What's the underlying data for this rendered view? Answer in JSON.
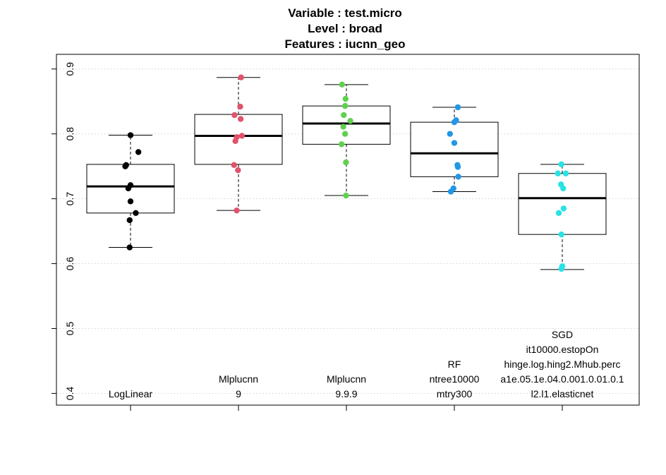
{
  "chart_data": {
    "type": "boxplot",
    "title": [
      "Variable :   test.micro",
      "Level :   broad",
      "Features :   iucnn_geo"
    ],
    "xlabel": "",
    "ylabel": "",
    "ylim": [
      0.38,
      0.93
    ],
    "yticks": [
      0.4,
      0.5,
      0.6,
      0.7,
      0.8,
      0.9
    ],
    "ytick_labels": [
      "0.4",
      "0.5",
      "0.6",
      "0.7",
      "0.8",
      "0.9"
    ],
    "grid": true,
    "legend": "none",
    "groups": [
      {
        "label_lines": [
          "LogLinear"
        ],
        "color": "#000000",
        "min": 0.625,
        "q1": 0.678,
        "median": 0.719,
        "q3": 0.753,
        "max": 0.798,
        "points": [
          0.798,
          0.772,
          0.752,
          0.75,
          0.721,
          0.716,
          0.696,
          0.678,
          0.667,
          0.625
        ],
        "jitter": [
          0,
          0.18,
          -0.1,
          -0.12,
          0,
          -0.05,
          0,
          0.12,
          -0.02,
          -0.02
        ]
      },
      {
        "label_lines": [
          "Mlplucnn",
          "9"
        ],
        "color": "#DF536B",
        "min": 0.682,
        "q1": 0.753,
        "median": 0.797,
        "q3": 0.83,
        "max": 0.887,
        "points": [
          0.887,
          0.842,
          0.829,
          0.823,
          0.797,
          0.795,
          0.789,
          0.752,
          0.744,
          0.682
        ],
        "jitter": [
          0.06,
          0.04,
          -0.09,
          0.05,
          0.08,
          -0.04,
          -0.07,
          -0.1,
          -0.01,
          -0.04
        ]
      },
      {
        "label_lines": [
          "Mlplucnn",
          "9.9.9"
        ],
        "color": "#61D04F",
        "min": 0.705,
        "q1": 0.784,
        "median": 0.816,
        "q3": 0.843,
        "max": 0.876,
        "points": [
          0.876,
          0.854,
          0.843,
          0.829,
          0.82,
          0.811,
          0.8,
          0.784,
          0.756,
          0.705
        ],
        "jitter": [
          -0.1,
          -0.02,
          -0.03,
          -0.06,
          0.09,
          -0.07,
          -0.03,
          -0.11,
          -0.01,
          -0.01
        ]
      },
      {
        "label_lines": [
          "RF",
          "ntree10000",
          "mtry300"
        ],
        "color": "#2297E6",
        "min": 0.711,
        "q1": 0.734,
        "median": 0.77,
        "q3": 0.818,
        "max": 0.841,
        "points": [
          0.841,
          0.821,
          0.818,
          0.8,
          0.786,
          0.752,
          0.749,
          0.734,
          0.716,
          0.711
        ],
        "jitter": [
          0.08,
          0.04,
          0.0,
          -0.1,
          0.0,
          0.07,
          0.08,
          0.09,
          -0.02,
          -0.08
        ]
      },
      {
        "label_lines": [
          "SGD",
          "it10000.estopOn",
          "hinge.log.hing2.Mhub.perc",
          "a1e.05.1e.04.0.001.0.01.0.1",
          "l2.l1.elasticnet"
        ],
        "color": "#28E2E5",
        "min": 0.591,
        "q1": 0.645,
        "median": 0.701,
        "q3": 0.739,
        "max": 0.753,
        "points": [
          0.753,
          0.739,
          0.739,
          0.722,
          0.716,
          0.685,
          0.678,
          0.645,
          0.596,
          0.592
        ],
        "jitter": [
          -0.02,
          -0.1,
          0.08,
          -0.03,
          0.02,
          0.03,
          -0.08,
          -0.02,
          0.0,
          -0.02
        ]
      }
    ]
  }
}
